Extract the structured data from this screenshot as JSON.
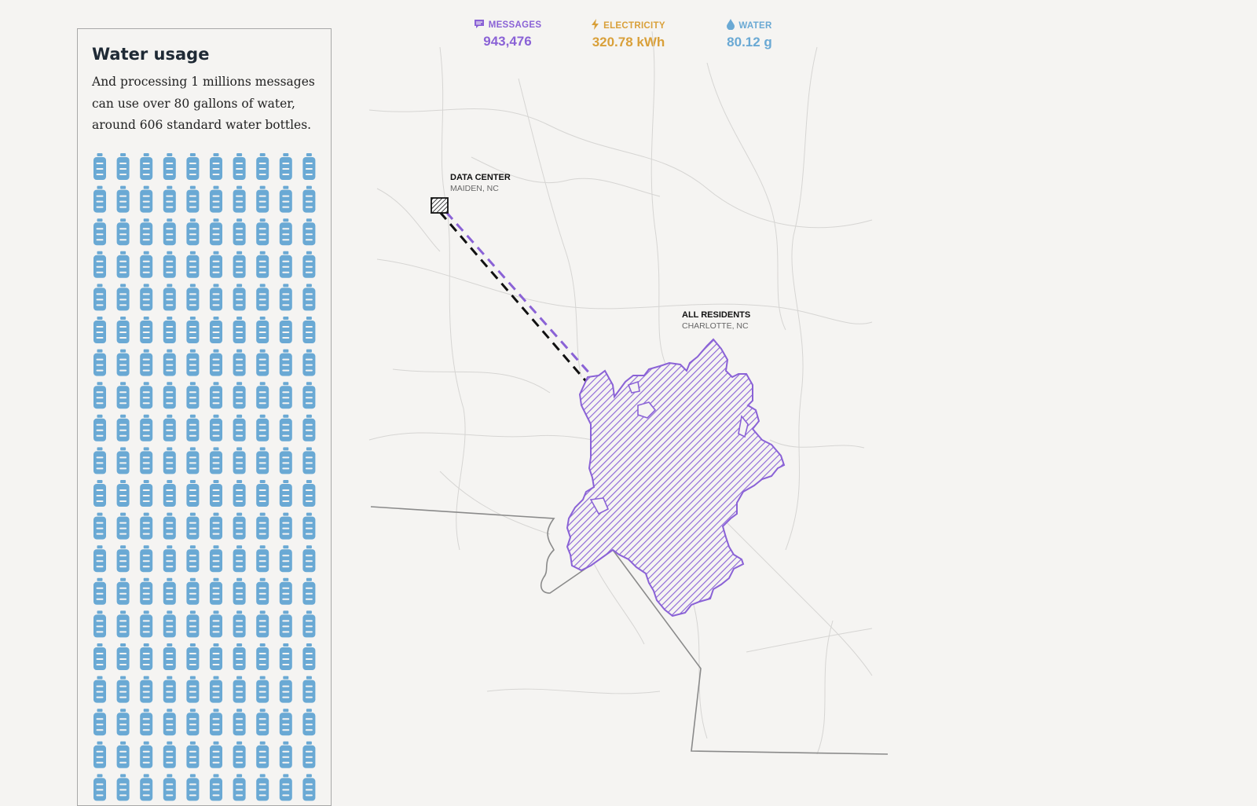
{
  "panel": {
    "title": "Water usage",
    "text": "And processing 1 millions messages can use over 80 gallons of water, around 606 standard water bottles.",
    "bottle_icon": "water-bottle-icon",
    "bottle_color": "#6aa9d4"
  },
  "stats": {
    "messages": {
      "label": "MESSAGES",
      "value": "943,476",
      "color": "#8a62d6",
      "icon": "message-icon"
    },
    "electricity": {
      "label": "ELECTRICITY",
      "value": "320.78 kWh",
      "color": "#d9a03a",
      "icon": "lightning-icon"
    },
    "water": {
      "label": "WATER",
      "value": "80.12 g",
      "color": "#6aa9d4",
      "icon": "water-drop-icon"
    }
  },
  "map": {
    "data_center": {
      "name": "DATA CENTER",
      "place": "MAIDEN, NC"
    },
    "residents": {
      "name": "ALL RESIDENTS",
      "place": "CHARLOTTE, NC"
    },
    "route_color": "#8a62d6",
    "area_color": "#8a62d6"
  }
}
